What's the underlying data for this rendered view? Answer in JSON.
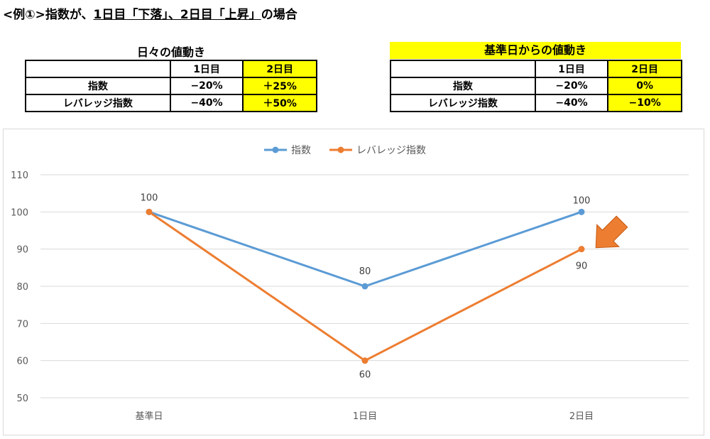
{
  "heading": {
    "prefix": "<例①>指数が、",
    "underlined": "1日目「下落」、2日目「上昇」",
    "suffix": "の場合"
  },
  "daily_table": {
    "title": "日々の値動き",
    "headers": [
      "",
      "1日目",
      "2日目"
    ],
    "rows": [
      {
        "label": "指数",
        "d1": "−20%",
        "d2": "＋25%"
      },
      {
        "label": "レバレッジ指数",
        "d1": "−40%",
        "d2": "＋50%"
      }
    ]
  },
  "base_table": {
    "title": "基準日からの値動き",
    "headers": [
      "",
      "1日目",
      "2日目"
    ],
    "rows": [
      {
        "label": "指数",
        "d1": "−20%",
        "d2": "0%"
      },
      {
        "label": "レバレッジ指数",
        "d1": "−40%",
        "d2": "−10%"
      }
    ]
  },
  "colors": {
    "index": "#5b9bd5",
    "leverage": "#ed7d31",
    "highlight": "#ffff00",
    "grid": "#d9d9d9"
  },
  "chart_data": {
    "type": "line",
    "categories": [
      "基準日",
      "1日目",
      "2日目"
    ],
    "series": [
      {
        "name": "指数",
        "values": [
          100,
          80,
          100
        ],
        "labels": [
          "100",
          "80",
          "100"
        ]
      },
      {
        "name": "レバレッジ指数",
        "values": [
          100,
          60,
          90
        ],
        "labels": [
          "",
          "60",
          "90"
        ]
      }
    ],
    "ylim": [
      50,
      110
    ],
    "yticks": [
      110,
      100,
      90,
      80,
      70,
      60,
      50
    ],
    "grid": true,
    "legend": "top-center",
    "annotation": {
      "shape": "arrow-icon",
      "target": "レバレッジ指数 2日目"
    }
  }
}
